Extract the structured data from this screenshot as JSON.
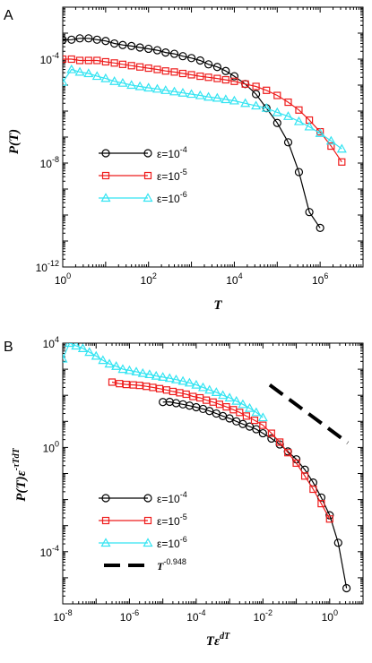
{
  "chart_data": [
    {
      "type": "line",
      "panel_label": "A",
      "xlabel": "T",
      "ylabel": "P(T)",
      "x_scale": "log",
      "y_scale": "log",
      "xlim": [
        1,
        10000000
      ],
      "ylim": [
        1e-12,
        0.01
      ],
      "x_ticks": [
        {
          "value": 1,
          "base": "10",
          "exp": "0"
        },
        {
          "value": 100,
          "base": "10",
          "exp": "2"
        },
        {
          "value": 10000,
          "base": "10",
          "exp": "4"
        },
        {
          "value": 1000000,
          "base": "10",
          "exp": "6"
        }
      ],
      "y_ticks": [
        {
          "value": 0.0001,
          "base": "10",
          "exp": "-4"
        },
        {
          "value": 1e-08,
          "base": "10",
          "exp": "-8"
        },
        {
          "value": 1e-12,
          "base": "10",
          "exp": "-12"
        }
      ],
      "legend_position": "center-left",
      "series": [
        {
          "name_prefix": "ε=10",
          "name_exp": "-4",
          "color": "#000000",
          "marker": "circle",
          "x": [
            1,
            1.6,
            2.5,
            4,
            6.3,
            10,
            16,
            25,
            40,
            63,
            100,
            160,
            250,
            400,
            630,
            1000,
            1600,
            2500,
            4000,
            6300,
            10000,
            18000,
            32000,
            56000,
            100000,
            180000,
            320000,
            560000,
            1000000
          ],
          "y": [
            0.00055,
            0.00056,
            0.00063,
            0.00063,
            0.00056,
            0.0005,
            0.0004,
            0.00035,
            0.00032,
            0.00028,
            0.00025,
            0.00022,
            0.00018,
            0.00016,
            0.00013,
            0.00011,
            8.9e-05,
            6.3e-05,
            5e-05,
            3.5e-05,
            2.2e-05,
            1.1e-05,
            4.5e-06,
            1.3e-06,
            3.5e-07,
            6.3e-08,
            4.5e-09,
            1.3e-10,
            3.2e-11
          ]
        },
        {
          "name_prefix": "ε=10",
          "name_exp": "-5",
          "color": "#ee1c1c",
          "marker": "square",
          "x": [
            1,
            1.6,
            2.5,
            4,
            6.3,
            10,
            16,
            25,
            40,
            63,
            100,
            160,
            250,
            400,
            630,
            1000,
            1600,
            2500,
            4000,
            6300,
            10000,
            18000,
            32000,
            56000,
            100000,
            180000,
            320000,
            560000,
            1000000,
            1800000,
            3200000
          ],
          "y": [
            0.0001,
            0.0001,
            8.9e-05,
            8.9e-05,
            8.9e-05,
            7.9e-05,
            7.1e-05,
            6.3e-05,
            5.6e-05,
            5e-05,
            4.5e-05,
            4e-05,
            3.5e-05,
            3.2e-05,
            2.8e-05,
            2.5e-05,
            2.2e-05,
            2e-05,
            1.8e-05,
            1.6e-05,
            1.4e-05,
            1.1e-05,
            8.9e-06,
            6.3e-06,
            4e-06,
            2.2e-06,
            1.1e-06,
            4.5e-07,
            1.6e-07,
            4.5e-08,
            1.1e-08
          ]
        },
        {
          "name_prefix": "ε=10",
          "name_exp": "-6",
          "color": "#33e4f2",
          "marker": "triangle",
          "x": [
            1,
            1.6,
            2.5,
            4,
            6.3,
            10,
            16,
            25,
            40,
            63,
            100,
            160,
            250,
            400,
            630,
            1000,
            1600,
            2500,
            4000,
            6300,
            10000,
            18000,
            32000,
            56000,
            100000,
            180000,
            320000,
            560000,
            1000000,
            1800000,
            3200000
          ],
          "y": [
            1.3e-05,
            4e-05,
            3.2e-05,
            2.8e-05,
            2.2e-05,
            1.8e-05,
            1.4e-05,
            1.2e-05,
            1e-05,
            8.9e-06,
            7.9e-06,
            7.1e-06,
            6.3e-06,
            5.6e-06,
            5e-06,
            4.5e-06,
            4e-06,
            3.5e-06,
            3.2e-06,
            2.8e-06,
            2.5e-06,
            2e-06,
            1.6e-06,
            1.3e-06,
            8.9e-07,
            6.3e-07,
            4e-07,
            2.5e-07,
            1.4e-07,
            7.1e-08,
            3.5e-08
          ]
        }
      ]
    },
    {
      "type": "line",
      "panel_label": "B",
      "xlabel_base": "Tε",
      "xlabel_sup": "dT",
      "ylabel_base": "P(T)ε",
      "ylabel_sup": "-τTdT",
      "x_scale": "log",
      "y_scale": "log",
      "xlim": [
        1e-08,
        10
      ],
      "ylim": [
        1e-06,
        10000
      ],
      "x_ticks": [
        {
          "value": 1e-08,
          "base": "10",
          "exp": "-8"
        },
        {
          "value": 1e-06,
          "base": "10",
          "exp": "-6"
        },
        {
          "value": 0.0001,
          "base": "10",
          "exp": "-4"
        },
        {
          "value": 0.01,
          "base": "10",
          "exp": "-2"
        },
        {
          "value": 1,
          "base": "10",
          "exp": "0"
        }
      ],
      "y_ticks": [
        {
          "value": 10000,
          "base": "10",
          "exp": "4"
        },
        {
          "value": 1,
          "base": "10",
          "exp": "0"
        },
        {
          "value": 0.0001,
          "base": "10",
          "exp": "-4"
        }
      ],
      "legend_position": "bottom-left",
      "series": [
        {
          "name_prefix": "ε=10",
          "name_exp": "-4",
          "color": "#000000",
          "marker": "circle",
          "x": [
            1e-05,
            1.6e-05,
            2.5e-05,
            4e-05,
            6.3e-05,
            0.0001,
            0.00016,
            0.00025,
            0.0004,
            0.00063,
            0.001,
            0.0016,
            0.0025,
            0.004,
            0.0063,
            0.01,
            0.018,
            0.032,
            0.056,
            0.1,
            0.18,
            0.32,
            0.56,
            1,
            1.8,
            3.2
          ],
          "y": [
            55,
            56,
            50,
            45,
            40,
            35,
            30,
            25,
            20,
            16,
            13,
            10,
            7.9,
            6.3,
            5,
            3.5,
            2.2,
            1.3,
            0.7,
            0.35,
            0.14,
            0.045,
            0.012,
            0.0025,
            0.00022,
            4e-06
          ]
        },
        {
          "name_prefix": "ε=10",
          "name_exp": "-5",
          "color": "#ee1c1c",
          "marker": "square",
          "x": [
            3e-07,
            5e-07,
            8e-07,
            1.3e-06,
            2e-06,
            3.2e-06,
            5e-06,
            8e-06,
            1.3e-05,
            2e-05,
            3.2e-05,
            5e-05,
            8e-05,
            0.00013,
            0.0002,
            0.00032,
            0.0005,
            0.0008,
            0.0013,
            0.002,
            0.0032,
            0.0056,
            0.01,
            0.018,
            0.032,
            0.056,
            0.1,
            0.18,
            0.32,
            0.56,
            1
          ],
          "y": [
            320,
            280,
            260,
            250,
            240,
            220,
            200,
            180,
            160,
            140,
            125,
            110,
            90,
            80,
            65,
            55,
            45,
            36,
            28,
            22,
            16,
            11,
            7.1,
            3.5,
            1.6,
            0.63,
            0.25,
            0.08,
            0.025,
            0.007,
            0.0018
          ]
        },
        {
          "name_prefix": "ε=10",
          "name_exp": "-6",
          "color": "#33e4f2",
          "marker": "triangle",
          "x": [
            1e-08,
            1.6e-08,
            2.5e-08,
            4e-08,
            6.3e-08,
            1e-07,
            1.6e-07,
            2.5e-07,
            4e-07,
            6.3e-07,
            1e-06,
            1.6e-06,
            2.5e-06,
            4e-06,
            6.3e-06,
            1e-05,
            1.6e-05,
            2.5e-05,
            4e-05,
            6.3e-05,
            0.0001,
            0.00016,
            0.00025,
            0.0004,
            0.00063,
            0.001,
            0.0016,
            0.0025,
            0.004,
            0.0063,
            0.01
          ],
          "y": [
            2500,
            10000,
            7900,
            6300,
            4500,
            3200,
            2200,
            1600,
            1300,
            1000,
            900,
            800,
            700,
            630,
            550,
            500,
            450,
            400,
            350,
            300,
            250,
            200,
            160,
            130,
            100,
            80,
            60,
            45,
            32,
            22,
            14
          ]
        }
      ],
      "reference_line": {
        "name_base": "T",
        "name_exp": "-0.948",
        "color": "#000000",
        "style": "dashed",
        "x": [
          0.016,
          3.5
        ],
        "y": [
          250,
          1.5
        ]
      }
    }
  ]
}
